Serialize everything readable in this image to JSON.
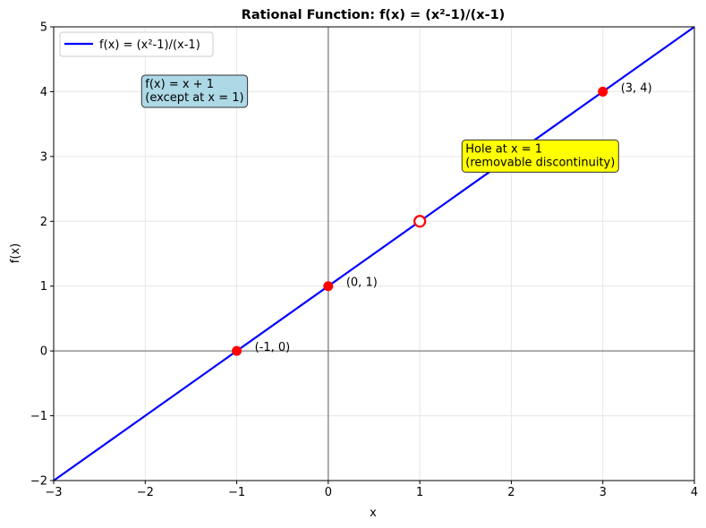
{
  "chart_data": {
    "type": "line",
    "title": "Rational Function: f(x) = (x²-1)/(x-1)",
    "xlabel": "x",
    "ylabel": "f(x)",
    "xlim": [
      -3,
      4
    ],
    "ylim": [
      -2,
      5
    ],
    "x_ticks": [
      -3,
      -2,
      -1,
      0,
      1,
      2,
      3,
      4
    ],
    "y_ticks": [
      -2,
      -1,
      0,
      1,
      2,
      3,
      4,
      5
    ],
    "x_tick_labels": [
      "−3",
      "−2",
      "−1",
      "0",
      "1",
      "2",
      "3",
      "4"
    ],
    "y_tick_labels": [
      "−2",
      "−1",
      "0",
      "1",
      "2",
      "3",
      "4",
      "5"
    ],
    "grid": true,
    "legend_position": "top-left",
    "series": [
      {
        "name": "f(x) = (x²-1)/(x-1)",
        "color": "#0000ff",
        "segments": [
          {
            "x": [
              -3,
              0.97
            ],
            "y": [
              -2,
              1.97
            ]
          },
          {
            "x": [
              1.03,
              4
            ],
            "y": [
              2.03,
              5
            ]
          }
        ]
      }
    ],
    "points": [
      {
        "x": -1,
        "y": 0,
        "label": "(-1, 0)",
        "color": "#ff0000",
        "filled": true
      },
      {
        "x": 0,
        "y": 1,
        "label": "(0, 1)",
        "color": "#ff0000",
        "filled": true
      },
      {
        "x": 3,
        "y": 4,
        "label": "(3, 4)",
        "color": "#ff0000",
        "filled": true
      },
      {
        "x": 1,
        "y": 2,
        "label": "",
        "color": "#ff0000",
        "filled": false
      }
    ],
    "annotations": [
      {
        "lines": [
          "f(x) = x + 1",
          "(except at x = 1)"
        ],
        "x": -2,
        "y": 4.2,
        "background": "#add8e6"
      },
      {
        "lines": [
          "Hole at x = 1",
          "(removable discontinuity)"
        ],
        "x": 1.5,
        "y": 3.2,
        "background": "#ffff00"
      }
    ]
  }
}
